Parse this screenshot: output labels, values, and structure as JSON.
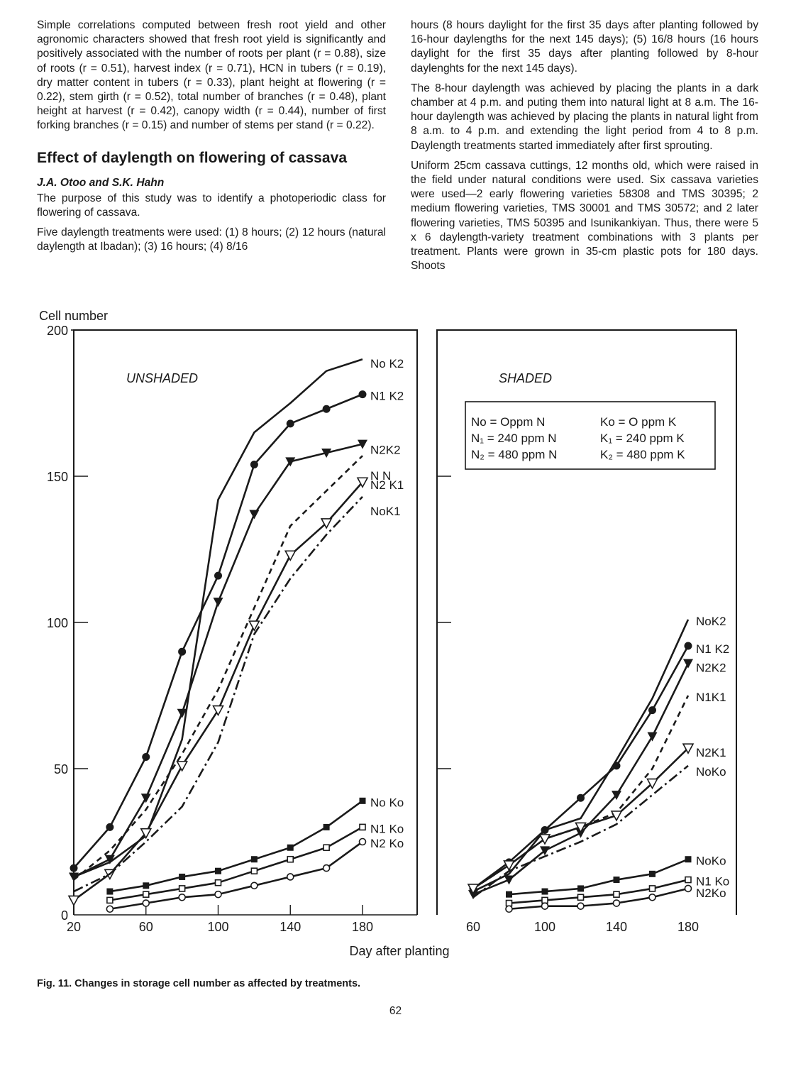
{
  "text": {
    "left_intro": "Simple correlations computed between fresh root yield and other agronomic characters showed that fresh root yield is significantly and positively associated with the number of roots per plant (r = 0.88), size of roots (r = 0.51), harvest index (r = 0.71), HCN in tubers (r = 0.19), dry matter content in tubers (r = 0.33), plant height at flowering (r = 0.22), stem girth (r = 0.52), total number of branches (r = 0.48), plant height at harvest (r = 0.42), canopy width (r = 0.44), number of first forking branches (r = 0.15) and number of stems per stand (r = 0.22).",
    "section_title": "Effect of daylength on flowering of cassava",
    "authors": "J.A. Otoo and S.K. Hahn",
    "para_purpose": "The purpose of this study was to identify a photoperiodic class for flowering of cassava.",
    "para_five": "Five daylength treatments were used: (1) 8 hours; (2) 12 hours (natural daylength at Ibadan); (3) 16 hours; (4) 8/16",
    "right_p1": "hours (8 hours daylight for the first 35 days after planting followed by 16-hour daylengths for the next 145 days); (5) 16/8 hours (16 hours daylight for the first 35 days after planting followed by 8-hour daylenghts for the next 145 days).",
    "right_p2": "The 8-hour daylength was achieved by placing the plants in a dark chamber at 4 p.m. and puting them into natural light at 8 a.m. The 16-hour daylength was achieved by placing the plants in natural light from 8 a.m. to 4 p.m. and extending the light period from 4 to 8 p.m. Daylength treatments started immediately after first sprouting.",
    "right_p3": "Uniform 25cm cassava cuttings, 12 months old, which were raised in the field under natural conditions were used. Six cassava varieties were used—2 early flowering varieties 58308 and TMS 30395; 2 medium flowering varieties, TMS 30001 and TMS 30572; and 2 later flowering varieties, TMS 50395 and Isunikankiyan. Thus, there were 5 x 6 daylength-variety treatment combinations with 3 plants per treatment. Plants were grown in 35-cm plastic pots for 180 days. Shoots",
    "caption": "Fig. 11. Changes in storage cell number as affected by treatments.",
    "page_number": "62"
  },
  "chart_data": {
    "type": "line",
    "ylabel": "Cell number",
    "xlabel": "Day after planting",
    "ylim": [
      0,
      200
    ],
    "yticks": [
      "0",
      "50",
      "100",
      "150",
      "200"
    ],
    "legend_box": {
      "n0": "No = Oppm N",
      "n1": "N₁ = 240 ppm N",
      "n2": "N₂ = 480 ppm N",
      "k0": "Ko = O ppm K",
      "k1": "K₁ = 240 ppm K",
      "k2": "K₂ = 480 ppm K"
    },
    "panels": [
      {
        "name": "UNSHADED",
        "xlim": [
          20,
          200
        ],
        "xticks": [
          "20",
          "60",
          "100",
          "140",
          "180"
        ],
        "series": [
          {
            "name": "No K2",
            "style": "solid",
            "marker": "none",
            "x": [
              20,
              40,
              60,
              80,
              100,
              120,
              140,
              160,
              180
            ],
            "y": [
              13,
              18,
              27,
              60,
              142,
              165,
              175,
              186,
              190
            ]
          },
          {
            "name": "N1 K2",
            "style": "solid",
            "marker": "filled-circle",
            "x": [
              20,
              40,
              60,
              80,
              100,
              120,
              140,
              160,
              180
            ],
            "y": [
              16,
              30,
              54,
              90,
              116,
              154,
              168,
              173,
              178
            ]
          },
          {
            "name": "N2K2",
            "style": "solid",
            "marker": "filled-triangle",
            "x": [
              20,
              40,
              60,
              80,
              100,
              120,
              140,
              160,
              180
            ],
            "y": [
              13,
              19,
              40,
              69,
              107,
              137,
              155,
              158,
              161
            ]
          },
          {
            "name": "N N",
            "style": "dashed",
            "marker": "none",
            "x": [
              20,
              40,
              60,
              80,
              100,
              120,
              140,
              160,
              180
            ],
            "y": [
              12,
              22,
              36,
              55,
              77,
              105,
              133,
              145,
              157
            ]
          },
          {
            "name": "N2 K1",
            "style": "solid",
            "marker": "open-triangle",
            "x": [
              20,
              40,
              60,
              80,
              100,
              120,
              140,
              160,
              180
            ],
            "y": [
              5,
              14,
              28,
              51,
              70,
              99,
              123,
              134,
              148
            ]
          },
          {
            "name": "NoK1",
            "style": "dashdot",
            "marker": "none",
            "x": [
              20,
              40,
              60,
              80,
              100,
              120,
              140,
              160,
              180
            ],
            "y": [
              8,
              14,
              25,
              37,
              59,
              96,
              115,
              130,
              143
            ]
          },
          {
            "name": "No Ko",
            "style": "solid",
            "marker": "filled-square",
            "x": [
              40,
              60,
              80,
              100,
              120,
              140,
              160,
              180
            ],
            "y": [
              8,
              10,
              13,
              15,
              19,
              23,
              30,
              39
            ]
          },
          {
            "name": "N1 Ko",
            "style": "solid",
            "marker": "open-square",
            "x": [
              40,
              60,
              80,
              100,
              120,
              140,
              160,
              180
            ],
            "y": [
              5,
              7,
              9,
              11,
              15,
              19,
              23,
              30
            ]
          },
          {
            "name": "N2 Ko",
            "style": "solid",
            "marker": "open-circle",
            "x": [
              40,
              60,
              80,
              100,
              120,
              140,
              160,
              180
            ],
            "y": [
              2,
              4,
              6,
              7,
              10,
              13,
              16,
              25
            ]
          }
        ]
      },
      {
        "name": "SHADED",
        "xlim": [
          40,
          200
        ],
        "xticks": [
          "60",
          "100",
          "140",
          "180"
        ],
        "series": [
          {
            "name": "NoK2",
            "style": "solid",
            "marker": "none",
            "x": [
              60,
              80,
              100,
              120,
              140,
              160,
              180
            ],
            "y": [
              8,
              14,
              29,
              33,
              53,
              74,
              101
            ]
          },
          {
            "name": "N1 K2",
            "style": "solid",
            "marker": "filled-circle",
            "x": [
              60,
              80,
              100,
              120,
              140,
              160,
              180
            ],
            "y": [
              9,
              18,
              29,
              40,
              51,
              70,
              92
            ]
          },
          {
            "name": "N2K2",
            "style": "solid",
            "marker": "filled-triangle",
            "x": [
              60,
              80,
              100,
              120,
              140,
              160,
              180
            ],
            "y": [
              7,
              12,
              22,
              28,
              41,
              61,
              86
            ]
          },
          {
            "name": "N1K1",
            "style": "dashed",
            "marker": "none",
            "x": [
              60,
              80,
              100,
              120,
              140,
              160,
              180
            ],
            "y": [
              9,
              17,
              26,
              30,
              35,
              50,
              75
            ]
          },
          {
            "name": "N2K1",
            "style": "solid",
            "marker": "open-triangle",
            "x": [
              60,
              80,
              100,
              120,
              140,
              160,
              180
            ],
            "y": [
              9,
              17,
              26,
              30,
              34,
              45,
              57
            ]
          },
          {
            "name": "NoKo",
            "style": "dashdot",
            "marker": "none",
            "x": [
              60,
              80,
              100,
              120,
              140,
              160,
              180
            ],
            "y": [
              6,
              15,
              20,
              25,
              31,
              41,
              51
            ]
          },
          {
            "name": "NoKo",
            "style": "solid",
            "marker": "filled-square",
            "x": [
              80,
              100,
              120,
              140,
              160,
              180
            ],
            "y": [
              7,
              8,
              9,
              12,
              14,
              19
            ]
          },
          {
            "name": "N1 Ko",
            "style": "solid",
            "marker": "open-square",
            "x": [
              80,
              100,
              120,
              140,
              160,
              180
            ],
            "y": [
              4,
              5,
              6,
              7,
              9,
              12
            ]
          },
          {
            "name": "N2Ko",
            "style": "solid",
            "marker": "open-circle",
            "x": [
              80,
              100,
              120,
              140,
              160,
              180
            ],
            "y": [
              2,
              3,
              3,
              4,
              6,
              9
            ]
          }
        ]
      }
    ]
  }
}
